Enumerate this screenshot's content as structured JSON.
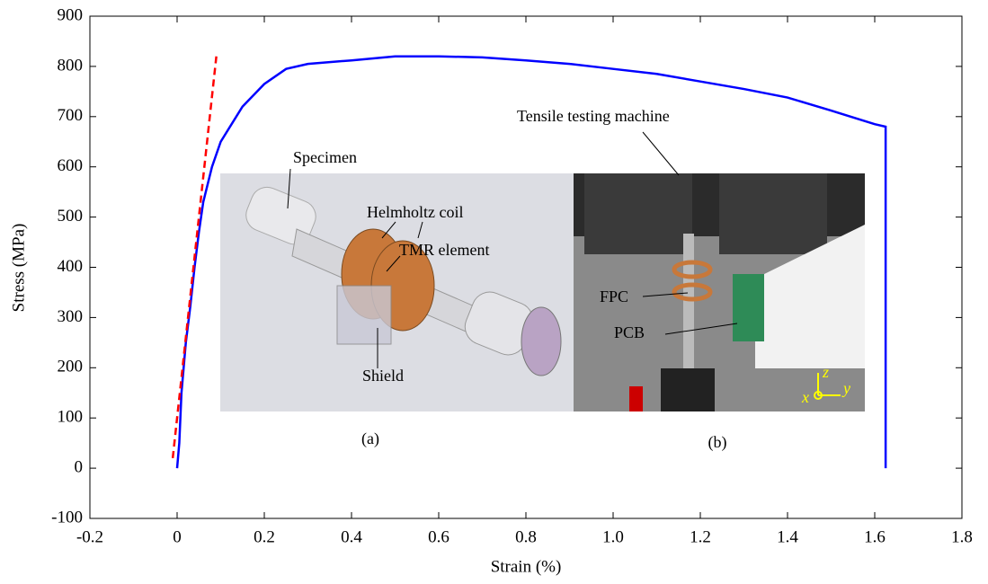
{
  "chart_data": {
    "type": "line",
    "xlabel": "Strain (%)",
    "ylabel": "Stress (MPa)",
    "xlim": [
      -0.2,
      1.8
    ],
    "ylim": [
      -100,
      900
    ],
    "xticks": [
      -0.2,
      0,
      0.2,
      0.4,
      0.6,
      0.8,
      {
        "value": 1,
        "label": "1.0"
      },
      1.2,
      1.4,
      1.6,
      1.8
    ],
    "yticks": [
      -100,
      0,
      100,
      200,
      300,
      400,
      500,
      600,
      700,
      800,
      900
    ],
    "series": [
      {
        "color": "#0000ff",
        "linestyle": "solid",
        "x": [
          0,
          0.005,
          0.01,
          0.02,
          0.03,
          0.04,
          0.05,
          0.06,
          0.08,
          0.1,
          0.15,
          0.2,
          0.25,
          0.3,
          0.4,
          0.5,
          0.6,
          0.7,
          0.8,
          0.9,
          1.0,
          1.1,
          1.2,
          1.3,
          1.4,
          1.5,
          1.6,
          1.625,
          1.625
        ],
        "values": [
          0,
          50,
          150,
          250,
          320,
          400,
          470,
          530,
          600,
          650,
          720,
          765,
          795,
          805,
          812,
          820,
          820,
          818,
          812,
          805,
          795,
          785,
          770,
          755,
          738,
          712,
          685,
          680,
          0
        ]
      },
      {
        "color": "#ff0000",
        "linestyle": "dashed",
        "x": [
          -0.01,
          0.09
        ],
        "values": [
          20,
          820
        ]
      }
    ],
    "annotations": [
      "Specimen",
      "Helmholtz coil",
      "TMR element",
      "Shield",
      "(a)",
      "Tensile testing machine",
      "FPC",
      "PCB",
      "(b)",
      "x",
      "y",
      "z"
    ]
  }
}
